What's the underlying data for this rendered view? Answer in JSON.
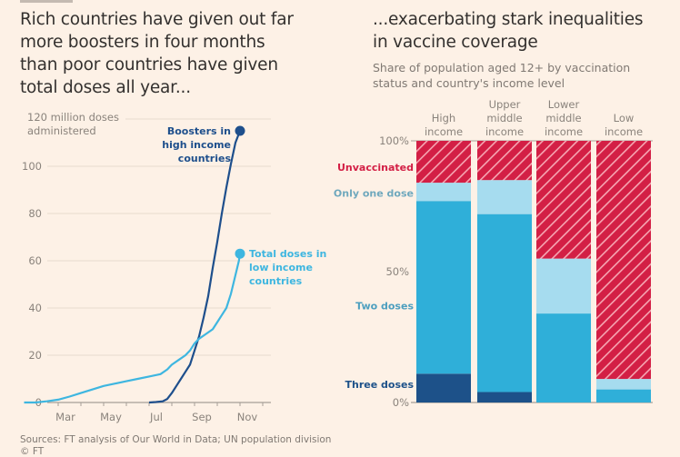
{
  "left_panel": {
    "title": "Rich countries have given out far more boosters in four months than poor countries have given total doses all year...",
    "title_lines": [
      "Rich countries have given out far",
      "more boosters in four months",
      "than poor countries have given",
      "total doses all year..."
    ]
  },
  "right_panel": {
    "title_lines": [
      "...exacerbating stark inequalities",
      "in vaccine coverage"
    ],
    "subtitle_lines": [
      "Share of population aged 12+ by vaccination",
      "status and country's income level"
    ]
  },
  "footer": {
    "sources": "Sources: FT analysis of Our World in Data; UN population division",
    "copyright": "© FT"
  },
  "colors": {
    "background": "#fdf1e6",
    "boosters": "#1e4f8c",
    "low_income_total": "#3eb6e0",
    "three_doses": "#1d5189",
    "two_doses": "#2fafd9",
    "one_dose": "#a6dcef",
    "unvaccinated": "#d31f45",
    "hatch": "#f6a7b3",
    "gridline": "#e8dccf",
    "axis": "#a69f98"
  },
  "chart_data": [
    {
      "type": "line",
      "title": "Rich countries have given out far more boosters in four months than poor countries have given total doses all year...",
      "ylabel": "120 million doses administered",
      "ylabel_lines": [
        "120 million doses",
        "administered"
      ],
      "xlabel": "",
      "ylim": [
        0,
        120
      ],
      "yticks": [
        0,
        20,
        40,
        60,
        80,
        100,
        120
      ],
      "ytick_labels": [
        "0",
        "20",
        "40",
        "60",
        "80",
        "100"
      ],
      "x_month_range": [
        1.5,
        11.2
      ],
      "xtick_months": [
        2,
        3,
        4,
        5,
        6,
        7,
        8,
        9,
        10,
        11,
        12
      ],
      "xtick_labels": [
        {
          "month": 3,
          "label": "Mar"
        },
        {
          "month": 5,
          "label": "May"
        },
        {
          "month": 7,
          "label": "Jul"
        },
        {
          "month": 9,
          "label": "Sep"
        },
        {
          "month": 11,
          "label": "Nov"
        }
      ],
      "grid": true,
      "series": [
        {
          "name": "Boosters in high income countries",
          "label_lines": [
            "Boosters in",
            "high income",
            "countries"
          ],
          "color_key": "boosters",
          "x": [
            7.0,
            7.3,
            7.6,
            7.8,
            8.0,
            8.2,
            8.4,
            8.6,
            8.8,
            9.0,
            9.2,
            9.4,
            9.6,
            9.8,
            10.0,
            10.2,
            10.4,
            10.6,
            10.8,
            11.0
          ],
          "y": [
            0,
            0.2,
            0.5,
            1.5,
            4,
            7,
            10,
            13,
            16,
            22,
            28,
            36,
            45,
            57,
            68,
            80,
            91,
            101,
            110,
            115
          ]
        },
        {
          "name": "Total doses in low income countries",
          "label_lines": [
            "Total doses in",
            "low income",
            "countries"
          ],
          "color_key": "low_income_total",
          "x": [
            1.5,
            2.0,
            2.5,
            3.0,
            3.5,
            4.0,
            4.5,
            5.0,
            5.5,
            6.0,
            6.5,
            7.0,
            7.5,
            7.8,
            8.0,
            8.3,
            8.6,
            8.8,
            9.0,
            9.2,
            9.5,
            9.8,
            10.0,
            10.2,
            10.4,
            10.5,
            10.6,
            10.75,
            10.85,
            10.95,
            11.0
          ],
          "y": [
            0,
            0,
            0.5,
            1.2,
            2.5,
            4,
            5.5,
            7,
            8,
            9,
            10,
            11,
            12,
            14,
            16,
            18,
            20,
            22,
            25,
            27,
            29,
            31,
            34,
            37,
            40,
            43,
            46,
            52,
            56,
            60,
            63
          ]
        }
      ]
    },
    {
      "type": "bar",
      "stacked": true,
      "title": "...exacerbating stark inequalities in vaccine coverage",
      "subtitle": "Share of population aged 12+ by vaccination status and country's income level",
      "ylim": [
        0,
        100
      ],
      "ytick_labels": [
        {
          "value": 100,
          "label": "100%"
        },
        {
          "value": 50,
          "label": "50%"
        },
        {
          "value": 0,
          "label": "0%"
        }
      ],
      "categories": [
        "High income",
        "Upper middle income",
        "Lower middle income",
        "Low income"
      ],
      "category_label_lines": [
        [
          "High",
          "income"
        ],
        [
          "Upper",
          "middle",
          "income"
        ],
        [
          "Lower",
          "middle",
          "income"
        ],
        [
          "Low",
          "income"
        ]
      ],
      "series": [
        {
          "name": "Three doses",
          "color_key": "three_doses",
          "values": [
            11,
            4,
            0,
            0
          ]
        },
        {
          "name": "Two doses",
          "color_key": "two_doses",
          "values": [
            66,
            68,
            34,
            5
          ]
        },
        {
          "name": "Only one dose",
          "color_key": "one_dose",
          "values": [
            7,
            13,
            21,
            4
          ]
        },
        {
          "name": "Unvaccinated",
          "color_key": "unvaccinated",
          "hatched": true,
          "values": [
            16,
            15,
            45,
            91
          ]
        }
      ],
      "legend_labels": [
        {
          "series": "Unvaccinated",
          "label": "Unvaccinated",
          "at_value": 90
        },
        {
          "series": "Only one dose",
          "label": "Only one dose",
          "at_value": 80
        },
        {
          "series": "Two doses",
          "label": "Two doses",
          "at_value": 37
        },
        {
          "series": "Three doses",
          "label": "Three doses",
          "at_value": 7
        }
      ]
    }
  ]
}
